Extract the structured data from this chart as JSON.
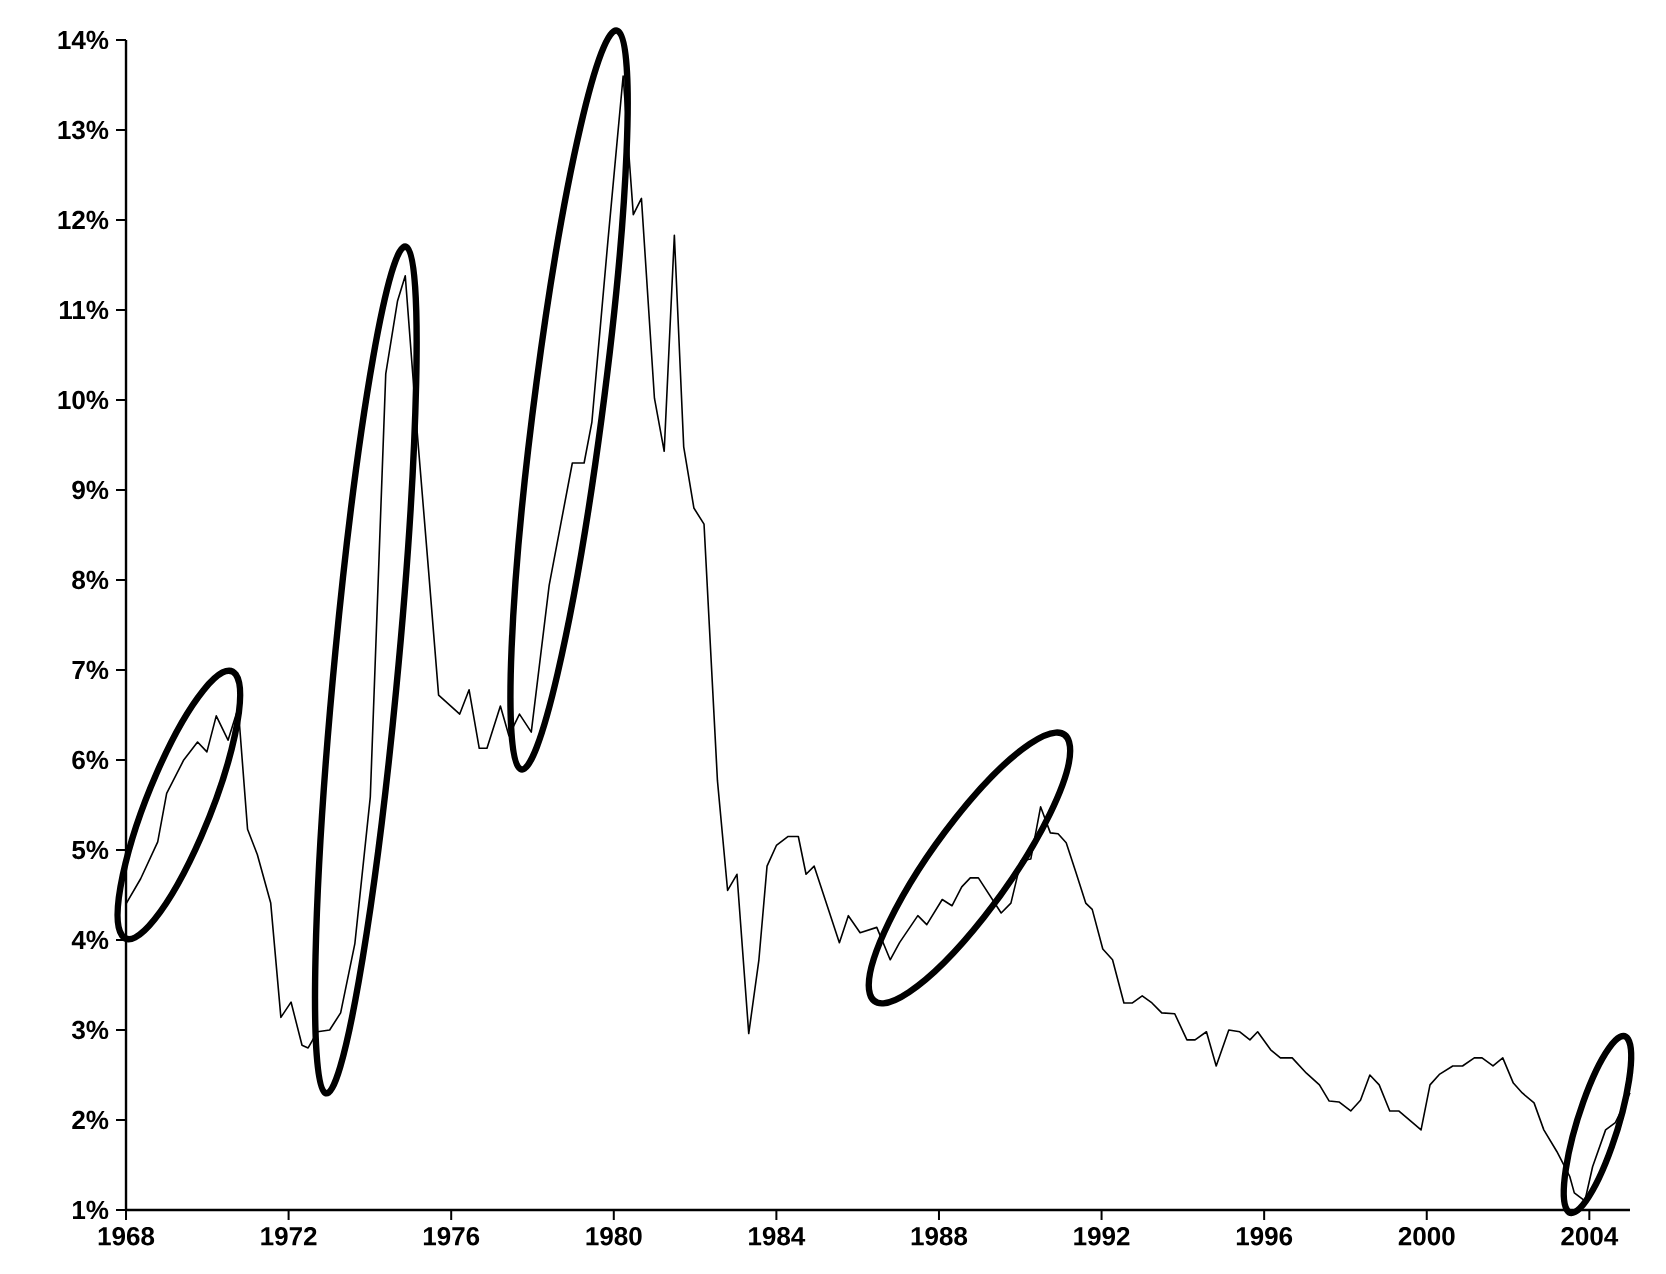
{
  "chart_data": {
    "type": "line",
    "x": [
      1968.0,
      1968.36,
      1968.78,
      1969.0,
      1969.42,
      1969.76,
      1969.99,
      1970.22,
      1970.51,
      1970.76,
      1970.99,
      1971.23,
      1971.56,
      1971.81,
      1972.06,
      1972.33,
      1972.48,
      1972.71,
      1973.01,
      1973.28,
      1973.63,
      1974.01,
      1974.39,
      1974.68,
      1974.87,
      1975.16,
      1975.44,
      1975.69,
      1976.21,
      1976.44,
      1976.69,
      1976.88,
      1977.21,
      1977.42,
      1977.68,
      1977.97,
      1978.41,
      1978.98,
      1979.27,
      1979.46,
      1979.85,
      1980.23,
      1980.48,
      1980.68,
      1981.0,
      1981.24,
      1981.49,
      1981.72,
      1981.97,
      1982.22,
      1982.55,
      1982.8,
      1983.03,
      1983.32,
      1983.57,
      1983.77,
      1984.0,
      1984.29,
      1984.54,
      1984.73,
      1984.93,
      1985.55,
      1985.77,
      1986.06,
      1986.47,
      1986.8,
      1987.03,
      1987.48,
      1987.7,
      1988.08,
      1988.32,
      1988.56,
      1988.77,
      1988.97,
      1989.53,
      1989.77,
      1990.02,
      1990.26,
      1990.5,
      1990.74,
      1990.93,
      1991.13,
      1991.37,
      1991.61,
      1991.77,
      1992.03,
      1992.27,
      1992.55,
      1992.76,
      1993.0,
      1993.24,
      1993.48,
      1993.8,
      1994.1,
      1994.3,
      1994.58,
      1994.82,
      1995.13,
      1995.4,
      1995.65,
      1995.84,
      1996.16,
      1996.4,
      1996.69,
      1997.04,
      1997.36,
      1997.6,
      1997.84,
      1998.13,
      1998.37,
      1998.6,
      1998.83,
      1999.09,
      1999.31,
      1999.6,
      1999.86,
      2000.08,
      2000.32,
      2000.64,
      2000.88,
      2001.17,
      2001.36,
      2001.63,
      2001.87,
      2002.13,
      2002.35,
      2002.64,
      2002.88,
      2003.2,
      2003.52,
      2003.63,
      2003.89,
      2004.08,
      2004.4,
      2004.64,
      2005.0
    ],
    "series": [
      {
        "color": "#000000",
        "values": [
          4.4,
          4.68,
          5.09,
          5.63,
          6.0,
          6.2,
          6.09,
          6.49,
          6.22,
          6.58,
          5.23,
          4.95,
          4.41,
          3.14,
          3.31,
          2.83,
          2.8,
          2.98,
          3.0,
          3.19,
          3.96,
          5.59,
          10.29,
          11.1,
          11.38,
          9.66,
          8.12,
          6.72,
          6.51,
          6.78,
          6.13,
          6.13,
          6.6,
          6.27,
          6.51,
          6.31,
          7.94,
          9.3,
          9.3,
          9.75,
          11.74,
          13.6,
          12.06,
          12.24,
          10.02,
          9.43,
          11.83,
          9.48,
          8.8,
          8.62,
          5.77,
          4.55,
          4.73,
          2.96,
          3.78,
          4.82,
          5.05,
          5.15,
          5.15,
          4.73,
          4.82,
          3.97,
          4.27,
          4.08,
          4.14,
          3.78,
          3.97,
          4.27,
          4.17,
          4.45,
          4.38,
          4.59,
          4.69,
          4.69,
          4.3,
          4.41,
          4.88,
          4.9,
          5.48,
          5.19,
          5.18,
          5.08,
          4.75,
          4.41,
          4.34,
          3.9,
          3.78,
          3.3,
          3.3,
          3.38,
          3.3,
          3.19,
          3.18,
          2.89,
          2.89,
          2.98,
          2.6,
          3.0,
          2.98,
          2.89,
          2.98,
          2.78,
          2.69,
          2.69,
          2.52,
          2.39,
          2.21,
          2.2,
          2.1,
          2.22,
          2.5,
          2.39,
          2.1,
          2.1,
          1.99,
          1.89,
          2.39,
          2.51,
          2.6,
          2.6,
          2.69,
          2.69,
          2.6,
          2.69,
          2.41,
          2.3,
          2.19,
          1.89,
          1.65,
          1.37,
          1.19,
          1.1,
          1.48,
          1.89,
          1.97,
          2.3
        ]
      }
    ],
    "xlim": [
      1968,
      2005
    ],
    "xticks": [
      1968,
      1972,
      1976,
      1980,
      1984,
      1988,
      1992,
      1996,
      2000,
      2004
    ],
    "ylim": [
      1,
      14
    ],
    "yticks": [
      {
        "value": 1,
        "label": "1%"
      },
      {
        "value": 2,
        "label": "2%"
      },
      {
        "value": 3,
        "label": "3%"
      },
      {
        "value": 4,
        "label": "4%"
      },
      {
        "value": 5,
        "label": "5%"
      },
      {
        "value": 6,
        "label": "6%"
      },
      {
        "value": 7,
        "label": "7%"
      },
      {
        "value": 8,
        "label": "8%"
      },
      {
        "value": 9,
        "label": "9%"
      },
      {
        "value": 10,
        "label": "10%"
      },
      {
        "value": 11,
        "label": "11%"
      },
      {
        "value": 12,
        "label": "12%"
      },
      {
        "value": 13,
        "label": "13%"
      },
      {
        "value": 14,
        "label": "14%"
      }
    ],
    "grid": false,
    "line_style": "solid"
  }
}
